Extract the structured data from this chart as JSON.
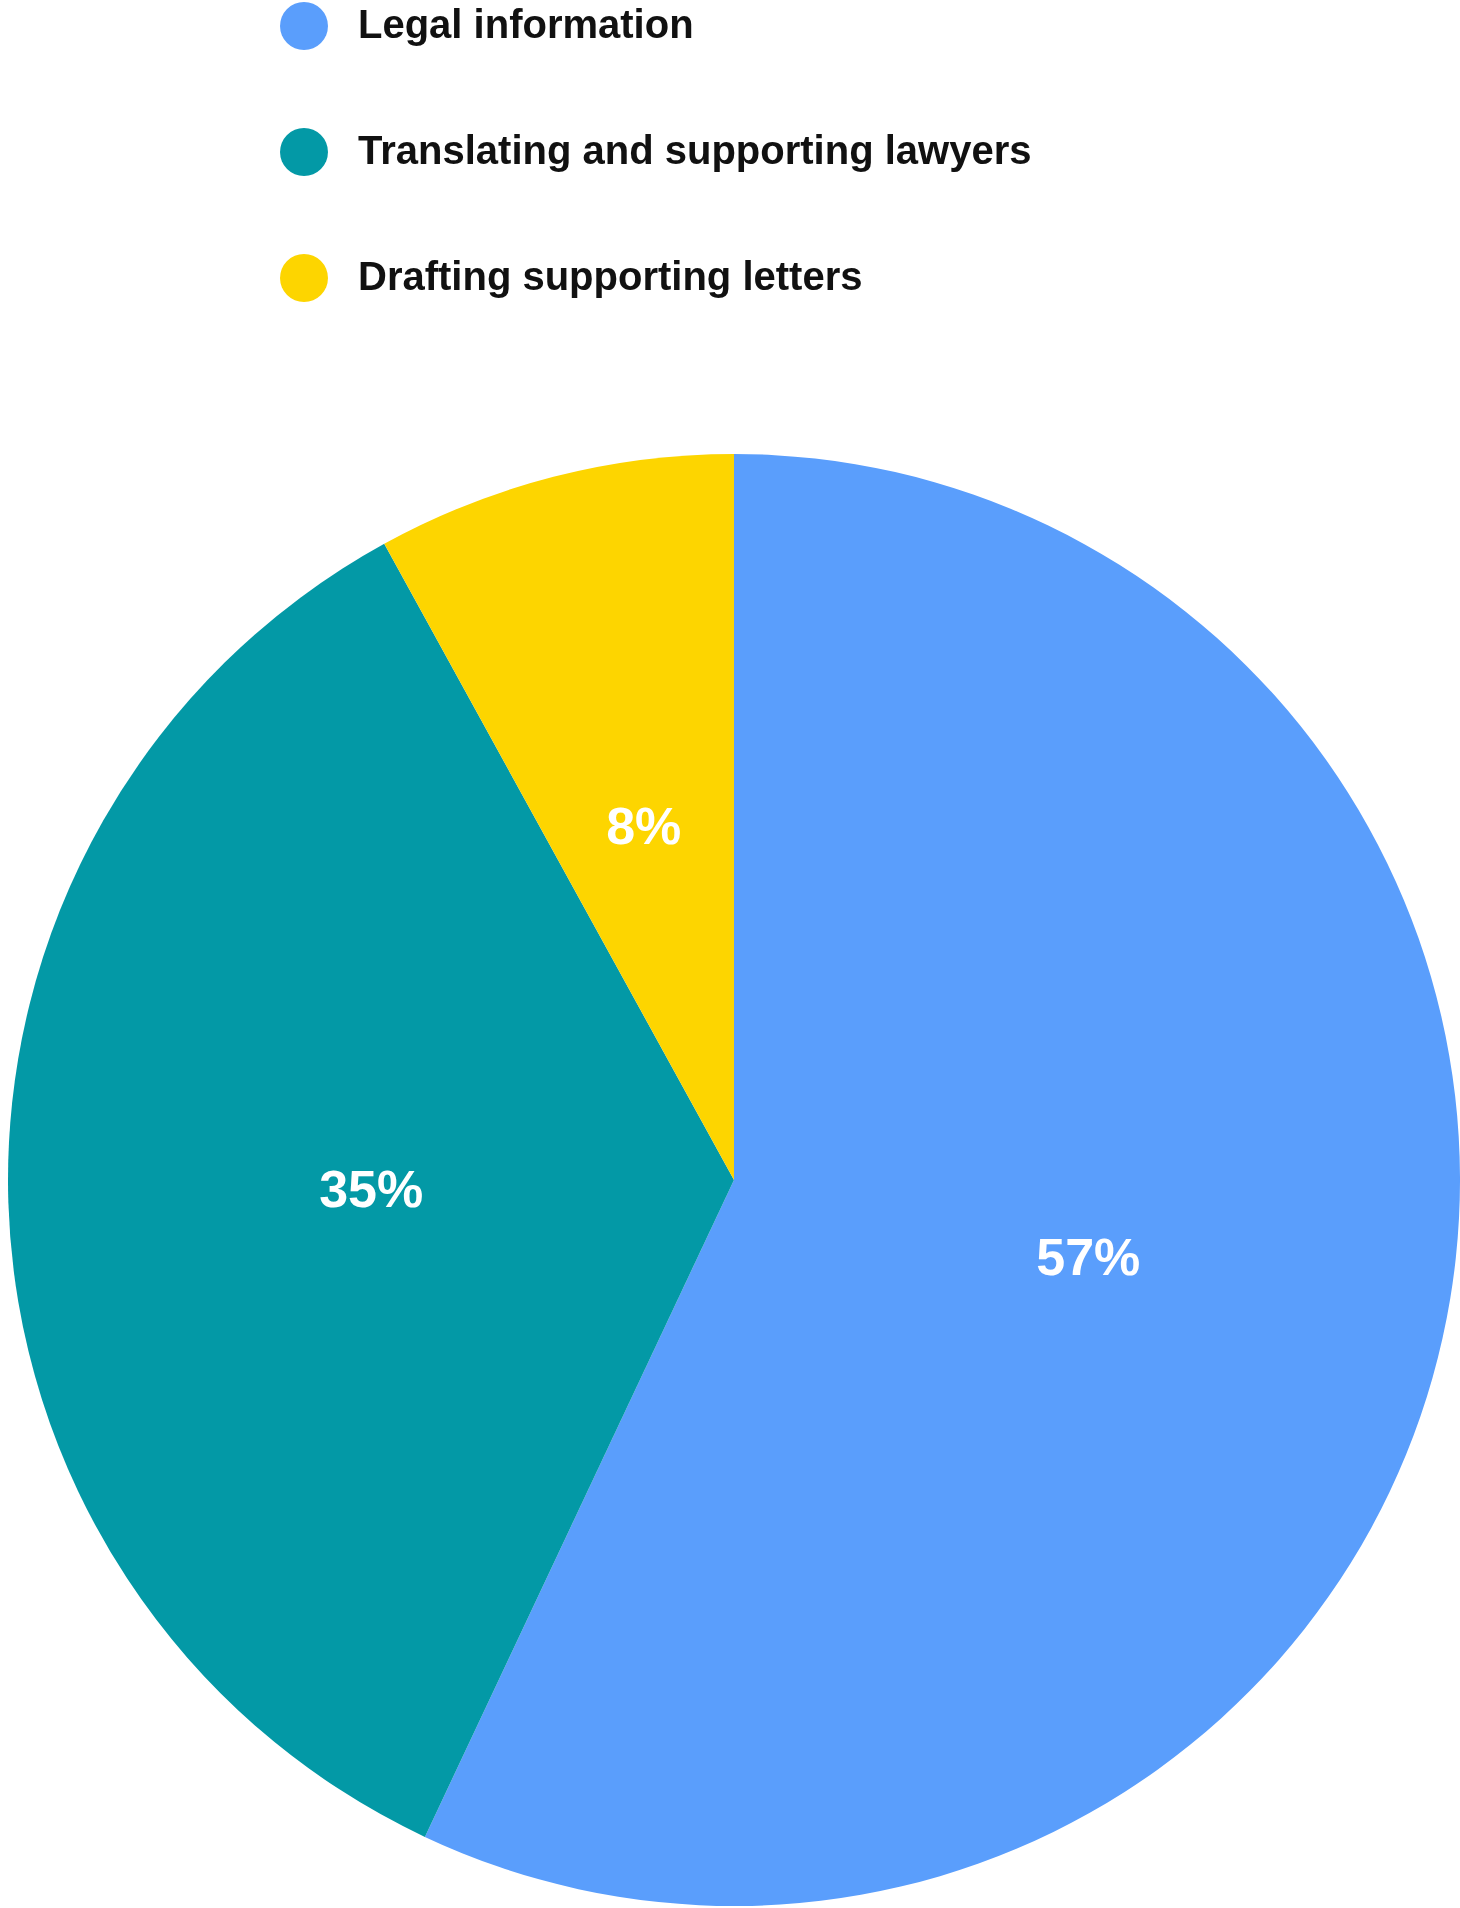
{
  "chart_data": {
    "type": "pie",
    "categories": [
      "Legal information",
      "Translating and supporting lawyers",
      "Drafting supporting letters"
    ],
    "values": [
      57,
      35,
      8
    ],
    "colors": [
      "#5a9efc",
      "#0399a6",
      "#fdd500"
    ],
    "value_labels": [
      "57%",
      "35%",
      "8%"
    ],
    "legend": "top left"
  }
}
